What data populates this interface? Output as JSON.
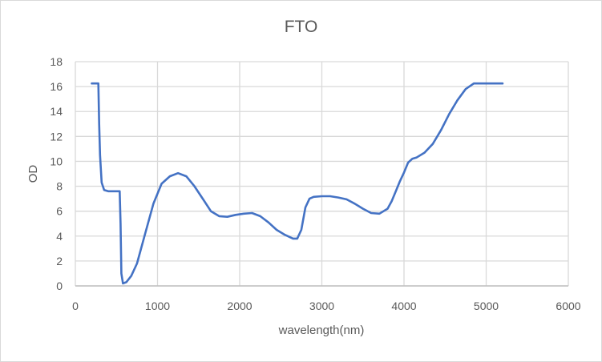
{
  "chart_data": {
    "type": "line",
    "title": "FTO",
    "xlabel": "wavelength(nm)",
    "ylabel": "OD",
    "xlim": [
      0,
      6000
    ],
    "ylim": [
      0,
      18
    ],
    "xticks": [
      0,
      1000,
      2000,
      3000,
      4000,
      5000,
      6000
    ],
    "yticks": [
      0,
      2,
      4,
      6,
      8,
      10,
      12,
      14,
      16,
      18
    ],
    "grid": true,
    "legend": null,
    "series": [
      {
        "name": "FTO",
        "color": "#4472c4",
        "x": [
          200,
          280,
          290,
          300,
          320,
          350,
          400,
          500,
          540,
          550,
          560,
          580,
          620,
          680,
          750,
          850,
          950,
          1050,
          1150,
          1250,
          1350,
          1450,
          1550,
          1650,
          1750,
          1850,
          1950,
          2050,
          2150,
          2250,
          2350,
          2450,
          2550,
          2650,
          2700,
          2750,
          2800,
          2850,
          2900,
          3000,
          3100,
          3200,
          3300,
          3400,
          3500,
          3600,
          3700,
          3800,
          3850,
          3900,
          3950,
          4000,
          4050,
          4100,
          4150,
          4250,
          4350,
          4450,
          4550,
          4650,
          4750,
          4850,
          4900,
          5000,
          5100,
          5200
        ],
        "y": [
          16.25,
          16.25,
          13.0,
          10.5,
          8.3,
          7.7,
          7.6,
          7.6,
          7.6,
          5.0,
          1.0,
          0.2,
          0.3,
          0.8,
          1.8,
          4.2,
          6.6,
          8.2,
          8.8,
          9.05,
          8.8,
          8.0,
          7.0,
          6.0,
          5.6,
          5.55,
          5.7,
          5.8,
          5.85,
          5.6,
          5.1,
          4.5,
          4.1,
          3.8,
          3.8,
          4.5,
          6.3,
          7.0,
          7.15,
          7.2,
          7.2,
          7.1,
          6.95,
          6.6,
          6.2,
          5.85,
          5.8,
          6.2,
          6.8,
          7.6,
          8.4,
          9.1,
          9.9,
          10.2,
          10.3,
          10.7,
          11.4,
          12.5,
          13.8,
          14.9,
          15.8,
          16.25,
          16.25,
          16.25,
          16.25,
          16.25
        ]
      }
    ]
  }
}
